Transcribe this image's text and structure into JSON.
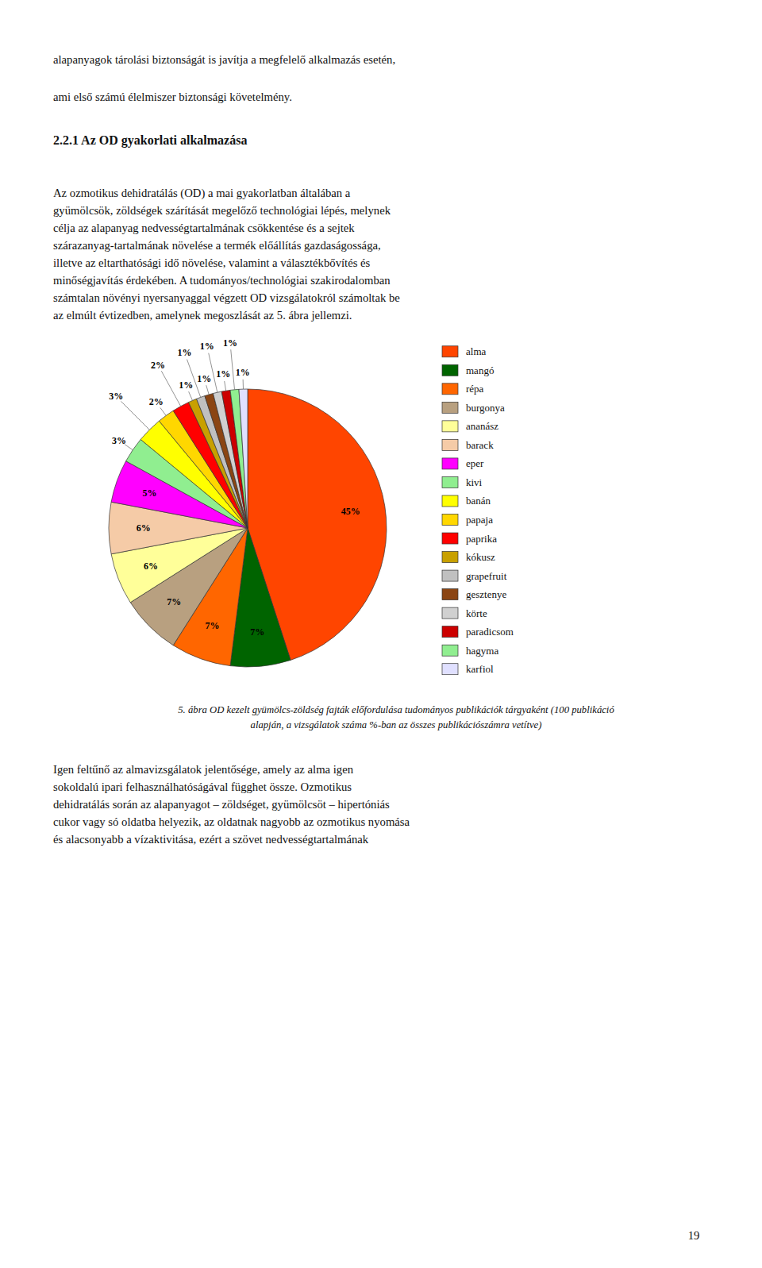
{
  "chart_data": {
    "type": "pie",
    "categories": [
      "alma",
      "mangó",
      "répa",
      "burgonya",
      "ananász",
      "barack",
      "eper",
      "kivi",
      "banán",
      "papaja",
      "paprika",
      "kókusz",
      "grapefruit",
      "gesztenye",
      "körte",
      "paradicsom",
      "hagyma",
      "karfiol"
    ],
    "values": [
      45,
      7,
      7,
      7,
      6,
      6,
      5,
      3,
      3,
      2,
      2,
      1,
      1,
      1,
      1,
      1,
      1,
      1
    ],
    "value_labels": [
      "45%",
      "7%",
      "7%",
      "7%",
      "6%",
      "6%",
      "5%",
      "3%",
      "3%",
      "2%",
      "2%",
      "1%",
      "1%",
      "1%",
      "1%",
      "1%",
      "1%",
      "1%"
    ],
    "colors": [
      "#FF4500",
      "#006400",
      "#FF6600",
      "#B8A080",
      "#FFFF99",
      "#F5CBA7",
      "#FF00FF",
      "#90EE90",
      "#FFFF00",
      "#FFD700",
      "#FF0000",
      "#C8A000",
      "#C0C0C0",
      "#8B4513",
      "#D0D0D0",
      "#CC0000",
      "#90EE90",
      "#E0E0FF"
    ],
    "data_labels": true,
    "legend": "right"
  },
  "text_top": [
    "alapanyagok tárolási biztonságát is javítja a megfelelő alkalmazás esetén,",
    "ami első számú élelmiszer biztonsági követelmény."
  ],
  "section_title": "2.2.1 Az OD gyakorlati alkalmazása",
  "section_body": [
    "Az ozmotikus dehidratálás (OD) a mai gyakorlatban általában a",
    "gyümölcsök, zöldségek szárítását megelőző technológiai lépés, melynek",
    "célja az alapanyag nedvességtartalmának csökkentése és a sejtek",
    "szárazanyag-tartalmának növelése a termék előállítás gazdaságossága,",
    "illetve az eltarthatósági idő növelése, valamint a választékbővítés és",
    "minőségjavítás érdekében. A tudományos/technológiai szakirodalomban",
    "számtalan növényi nyersanyaggal végzett OD vizsgálatokról számoltak be",
    "az elmúlt évtizedben, amelynek megoszlását az 5. ábra jellemzi."
  ],
  "caption": [
    "5. ábra OD kezelt gyümölcs-zöldség fajták előfordulása tudományos publikációk tárgyaként (100 publikáció",
    "alapján, a vizsgálatok száma %-ban az összes publikációszámra vetítve)"
  ],
  "text_bottom": [
    "Igen feltűnő az almavizsgálatok jelentősége, amely az alma igen",
    "sokoldalú ipari felhasználhatóságával függhet össze. Ozmotikus",
    "dehidratálás során az alapanyagot – zöldséget, gyümölcsöt – hipertóniás",
    "cukor vagy só oldatba helyezik, az oldatnak nagyobb az ozmotikus nyomása",
    "és alacsonyabb a vízaktivitása, ezért a szövet nedvességtartalmának"
  ],
  "page_number": "19"
}
